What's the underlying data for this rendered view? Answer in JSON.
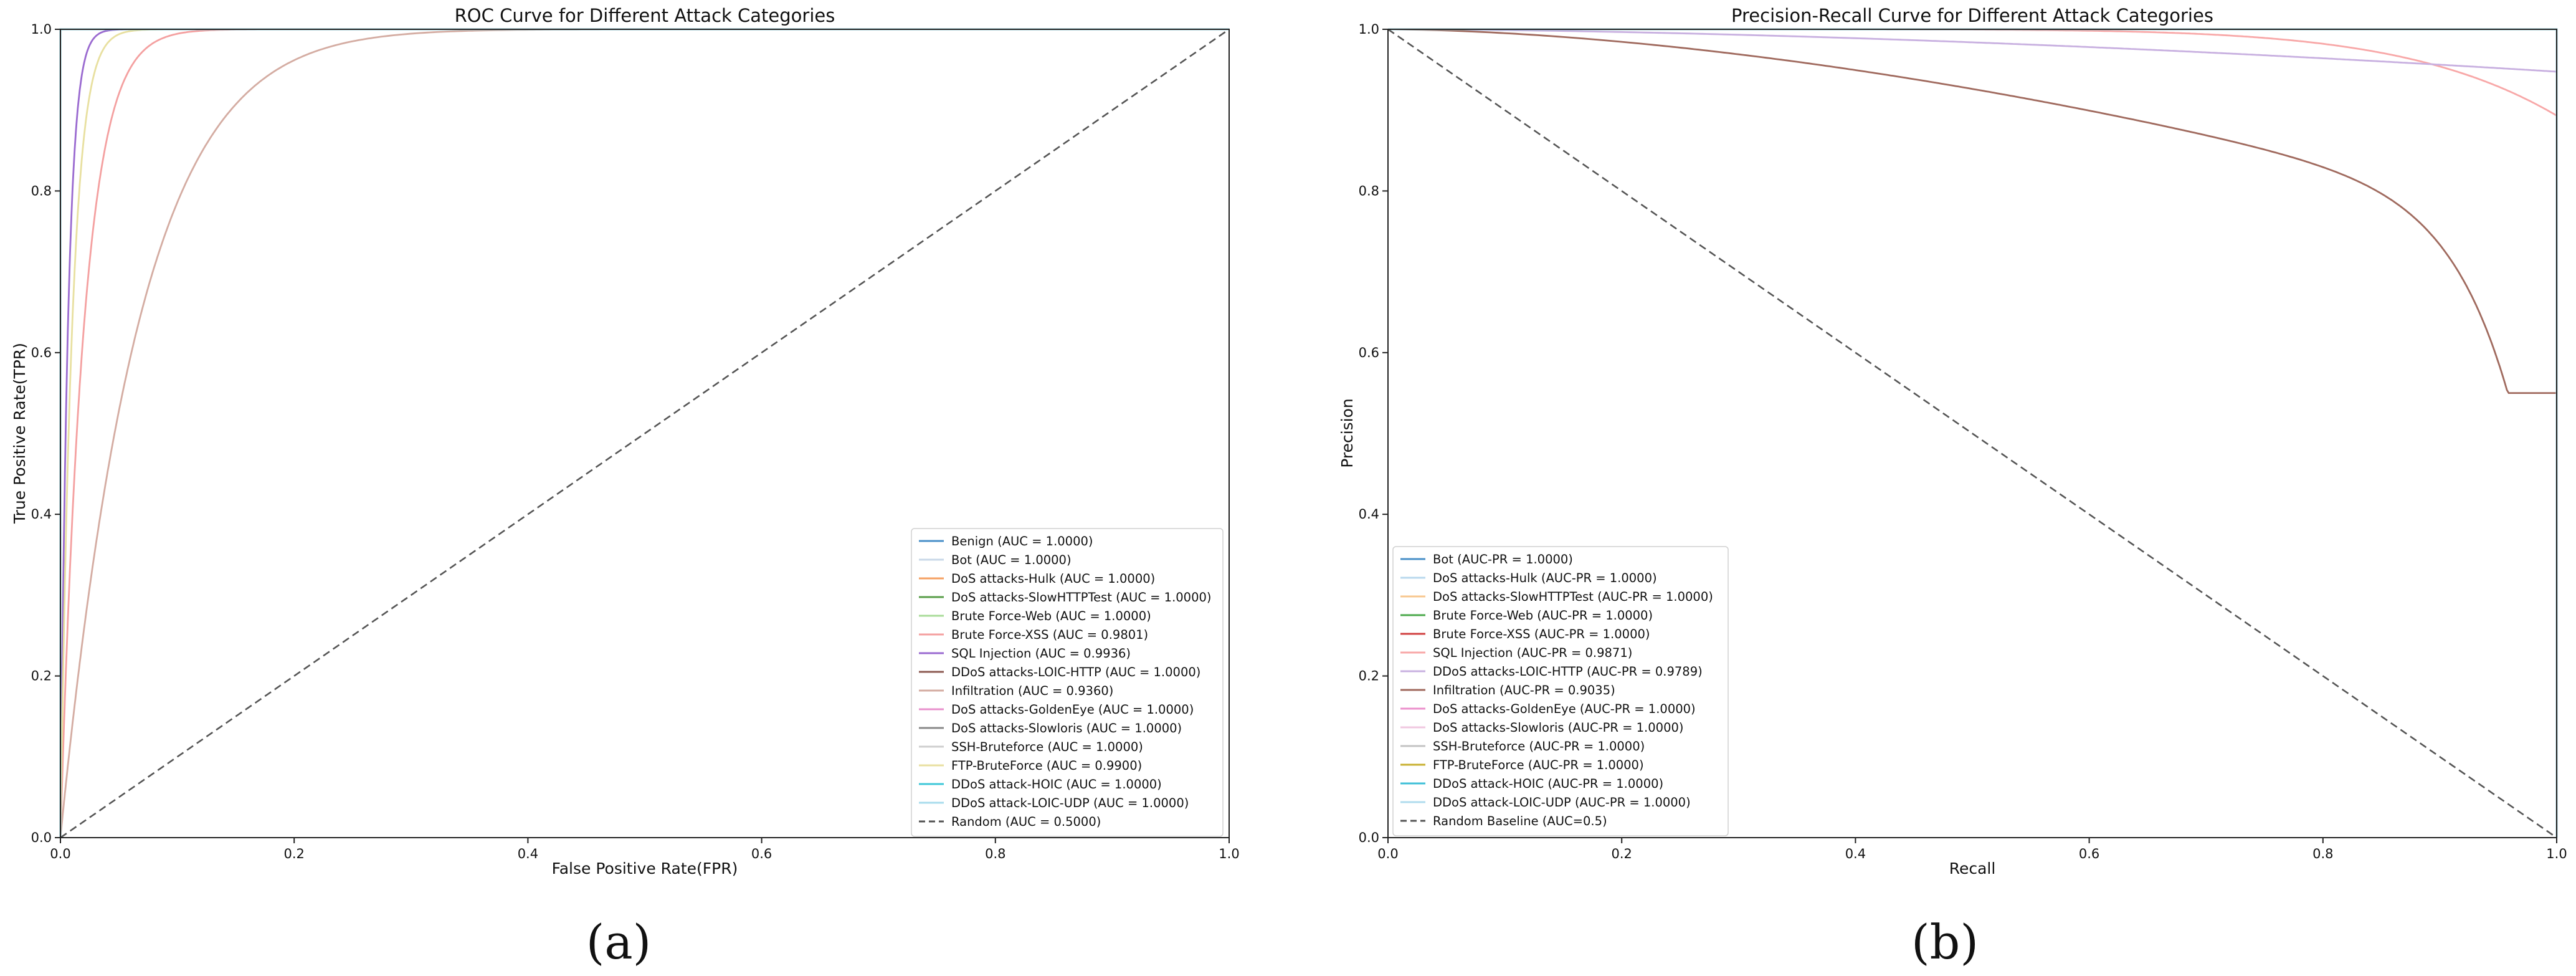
{
  "chart_data": [
    {
      "type": "line",
      "title": "ROC Curve for Different Attack Categories",
      "xlabel": "False Positive Rate(FPR)",
      "ylabel": "True Positive Rate(TPR)",
      "xlim": [
        0,
        1
      ],
      "ylim": [
        0,
        1
      ],
      "xticks": [
        "0.0",
        "0.2",
        "0.4",
        "0.6",
        "0.8",
        "1.0"
      ],
      "yticks": [
        "0.0",
        "0.2",
        "0.4",
        "0.6",
        "0.8",
        "1.0"
      ],
      "grid": false,
      "legend_position": "lower-right",
      "caption": "(a)",
      "series": [
        {
          "name": "Benign (AUC = 1.0000)",
          "color": "#4a90c8",
          "auc": 1.0
        },
        {
          "name": "Bot (AUC = 1.0000)",
          "color": "#c9d8e8",
          "auc": 1.0
        },
        {
          "name": "DoS attacks-Hulk (AUC = 1.0000)",
          "color": "#f5a062",
          "auc": 1.0
        },
        {
          "name": "DoS attacks-SlowHTTPTest (AUC = 1.0000)",
          "color": "#5a9e4a",
          "auc": 1.0
        },
        {
          "name": "Brute Force-Web (AUC = 1.0000)",
          "color": "#a8dc98",
          "auc": 1.0
        },
        {
          "name": "Brute Force-XSS (AUC = 0.9801)",
          "color": "#f4a0a0",
          "auc": 0.9801
        },
        {
          "name": "SQL Injection (AUC = 0.9936)",
          "color": "#9a6ad0",
          "auc": 0.9936
        },
        {
          "name": "DDoS attacks-LOIC-HTTP (AUC = 1.0000)",
          "color": "#8c5a52",
          "auc": 1.0
        },
        {
          "name": "Infiltration (AUC = 0.9360)",
          "color": "#d4aca2",
          "auc": 0.936
        },
        {
          "name": "DoS attacks-GoldenEye (AUC = 1.0000)",
          "color": "#e890cc",
          "auc": 1.0
        },
        {
          "name": "DoS attacks-Slowloris (AUC = 1.0000)",
          "color": "#8a8a8a",
          "auc": 1.0
        },
        {
          "name": "SSH-Bruteforce (AUC = 1.0000)",
          "color": "#cfcfcf",
          "auc": 1.0
        },
        {
          "name": "FTP-BruteForce (AUC = 0.9900)",
          "color": "#e8e0a0",
          "auc": 0.99
        },
        {
          "name": "DDoS attack-HOIC (AUC = 1.0000)",
          "color": "#40c8d8",
          "auc": 1.0
        },
        {
          "name": "DDoS attack-LOIC-UDP (AUC = 1.0000)",
          "color": "#a8dcec",
          "auc": 1.0
        },
        {
          "name": "Random (AUC = 0.5000)",
          "color": "#555555",
          "auc": 0.5,
          "dashed": true
        }
      ]
    },
    {
      "type": "line",
      "title": "Precision-Recall Curve for Different Attack Categories",
      "xlabel": "Recall",
      "ylabel": "Precision",
      "xlim": [
        0,
        1
      ],
      "ylim": [
        0,
        1
      ],
      "xticks": [
        "0.0",
        "0.2",
        "0.4",
        "0.6",
        "0.8",
        "1.0"
      ],
      "yticks": [
        "0.0",
        "0.2",
        "0.4",
        "0.6",
        "0.8",
        "1.0"
      ],
      "grid": false,
      "legend_position": "lower-left",
      "caption": "(b)",
      "series": [
        {
          "name": "Bot (AUC-PR = 1.0000)",
          "color": "#4a90c8",
          "auc_pr": 1.0
        },
        {
          "name": "DoS attacks-Hulk (AUC-PR = 1.0000)",
          "color": "#b8d8ee",
          "auc_pr": 1.0
        },
        {
          "name": "DoS attacks-SlowHTTPTest (AUC-PR = 1.0000)",
          "color": "#f8c890",
          "auc_pr": 1.0
        },
        {
          "name": "Brute Force-Web (AUC-PR = 1.0000)",
          "color": "#4caa4c",
          "auc_pr": 1.0
        },
        {
          "name": "Brute Force-XSS (AUC-PR = 1.0000)",
          "color": "#d04040",
          "auc_pr": 1.0
        },
        {
          "name": "SQL Injection (AUC-PR = 0.9871)",
          "color": "#f8a8a8",
          "auc_pr": 0.9871
        },
        {
          "name": "DDoS attacks-LOIC-HTTP (AUC-PR = 0.9789)",
          "color": "#c8b0e0",
          "auc_pr": 0.9789
        },
        {
          "name": "Infiltration (AUC-PR = 0.9035)",
          "color": "#a06a5e",
          "auc_pr": 0.9035
        },
        {
          "name": "DoS attacks-GoldenEye (AUC-PR = 1.0000)",
          "color": "#ec90cc",
          "auc_pr": 1.0
        },
        {
          "name": "DoS attacks-Slowloris (AUC-PR = 1.0000)",
          "color": "#f0c8e0",
          "auc_pr": 1.0
        },
        {
          "name": "SSH-Bruteforce (AUC-PR = 1.0000)",
          "color": "#c4c4c4",
          "auc_pr": 1.0
        },
        {
          "name": "FTP-BruteForce (AUC-PR = 1.0000)",
          "color": "#c8b030",
          "auc_pr": 1.0
        },
        {
          "name": "DDoS attack-HOIC (AUC-PR = 1.0000)",
          "color": "#40c0d8",
          "auc_pr": 1.0
        },
        {
          "name": "DDoS attack-LOIC-UDP (AUC-PR = 1.0000)",
          "color": "#b0dcee",
          "auc_pr": 1.0
        },
        {
          "name": "Random Baseline (AUC=0.5)",
          "color": "#555555",
          "auc_pr": 0.5,
          "dashed": true
        }
      ]
    }
  ]
}
